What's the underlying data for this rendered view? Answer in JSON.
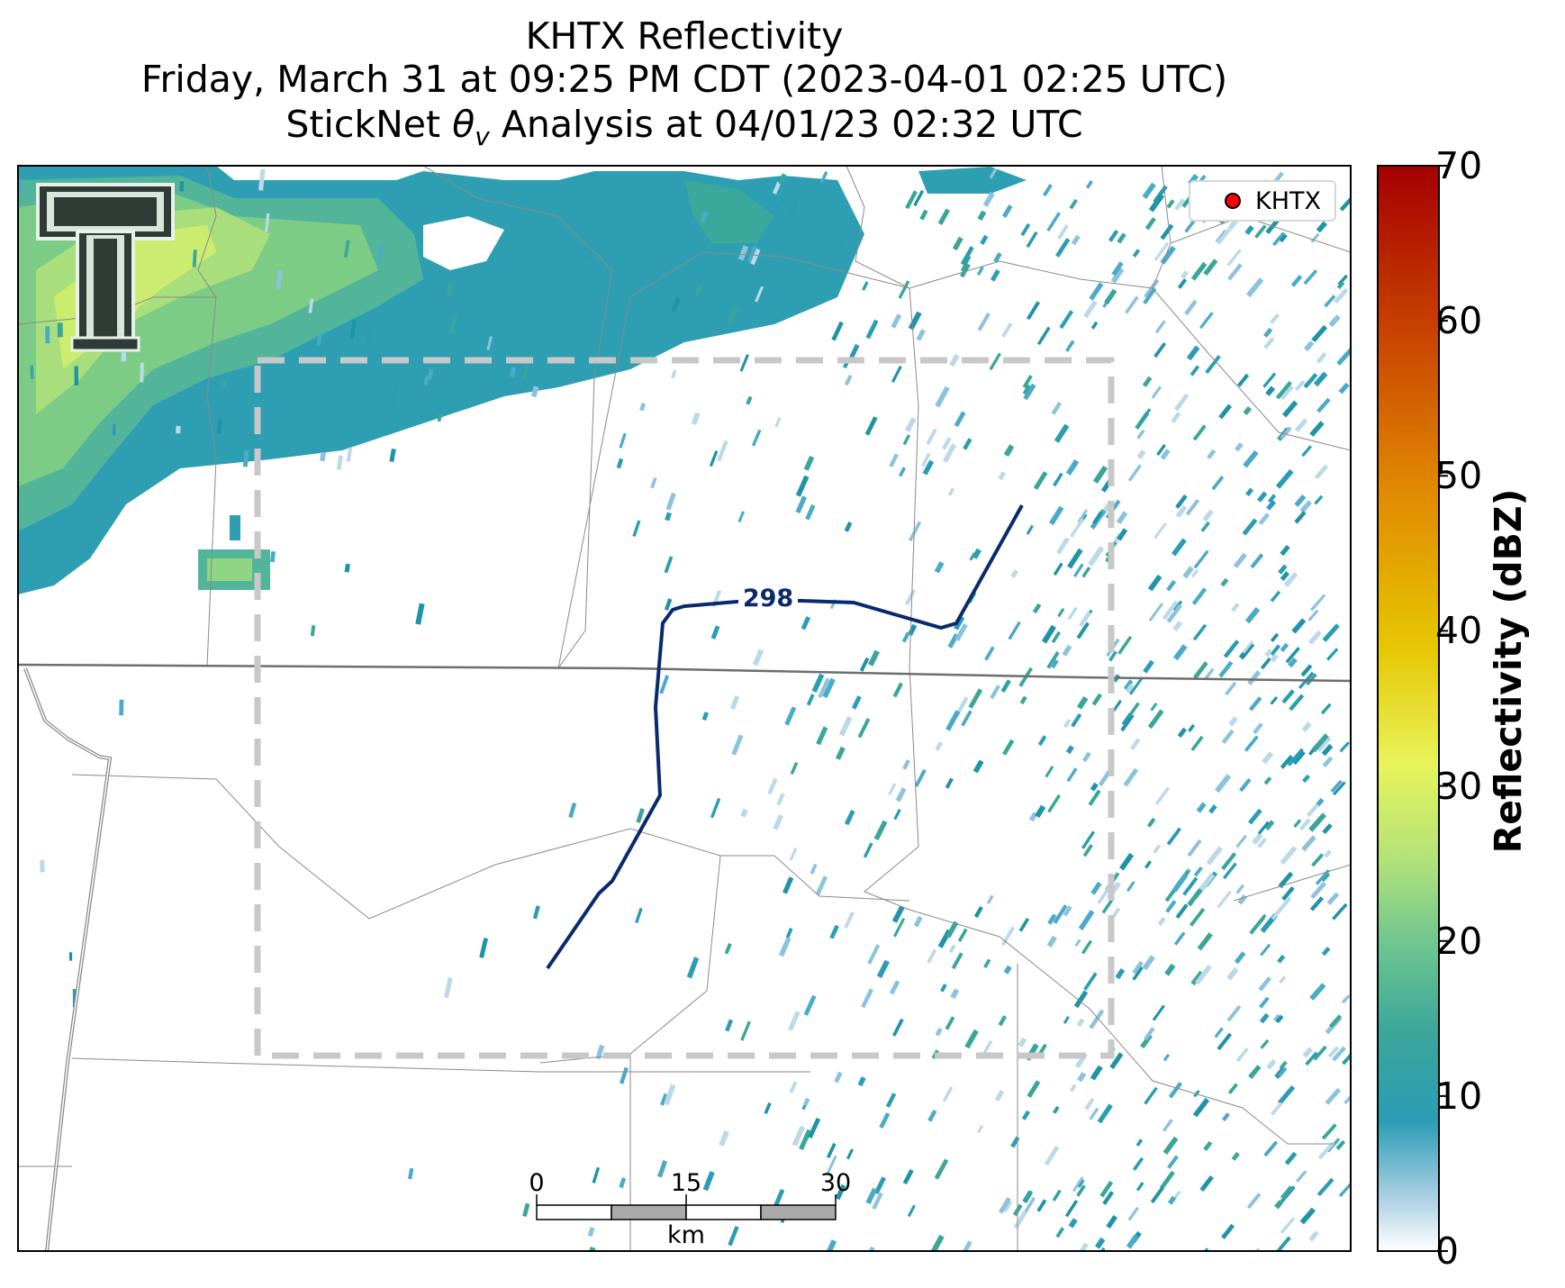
{
  "title": {
    "line1": "KHTX Reflectivity",
    "line2": "Friday, March 31 at 09:25 PM CDT (2023-04-01 02:25 UTC)",
    "line3_prefix": "StickNet ",
    "line3_symbol": "θ",
    "line3_subscript": "v",
    "line3_suffix": " Analysis at 04/01/23 02:32 UTC"
  },
  "legend": {
    "marker_color": "#ff0000",
    "label": "KHTX"
  },
  "contour": {
    "label": "298",
    "color": "#0a2a6e"
  },
  "analysis_box": {
    "style": "dashed",
    "color": "#c8c8c8"
  },
  "scale_bar": {
    "ticks": [
      "0",
      "15",
      "30"
    ],
    "unit": "km"
  },
  "colorbar": {
    "label": "Reflectivity (dBZ)",
    "ticks": [
      "70",
      "60",
      "50",
      "40",
      "30",
      "20",
      "10",
      "0"
    ],
    "range": [
      0,
      70
    ],
    "colors": [
      "#ffffff",
      "#a9cfe3",
      "#2a9db4",
      "#3aa69a",
      "#6cc490",
      "#b2e27a",
      "#e8f35a",
      "#e6c500",
      "#e08a00",
      "#c84100",
      "#a50000"
    ]
  },
  "logo": {
    "name": "Texas Tech Double T"
  }
}
